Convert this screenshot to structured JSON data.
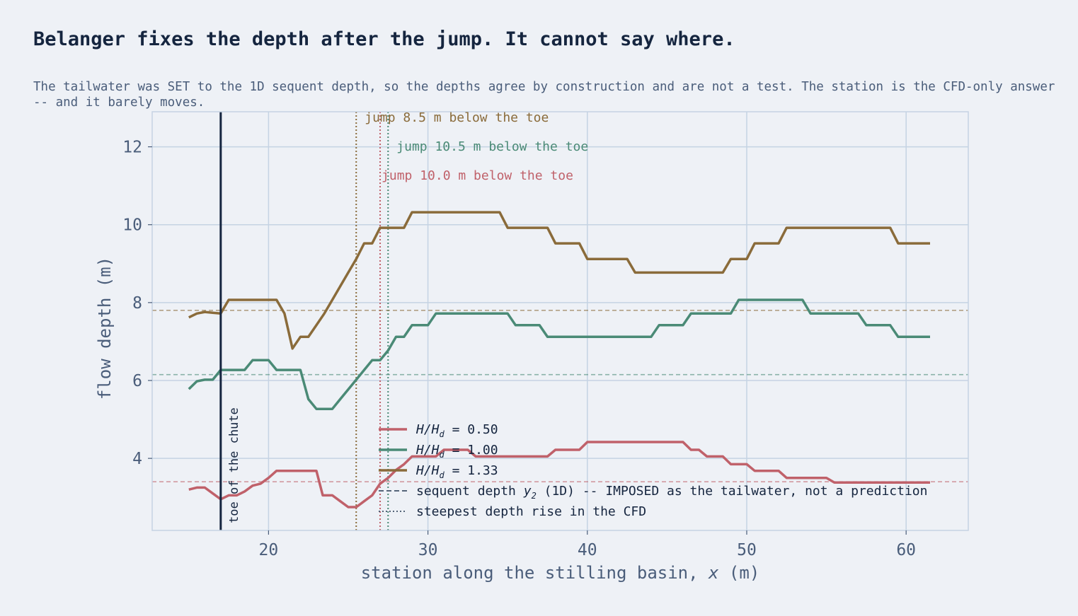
{
  "title": "Belanger fixes the depth after the jump. It cannot say where.",
  "subtitle": "The tailwater was SET to the 1D sequent depth, so the depths agree by construction and are not a test. The station is the CFD-only answer -- and it barely moves.",
  "colors": {
    "background": "#eef1f6",
    "grid": "#c5d3e3",
    "text": "#4a5d7a",
    "dark": "#15253f",
    "series_050": "#c0616a",
    "series_100": "#4a8a76",
    "series_133": "#8a6b3a"
  },
  "chart_data": {
    "type": "line",
    "xlabel": "station along the stilling basin,",
    "xlabel_var": "x",
    "xlabel_unit": "(m)",
    "ylabel": "flow depth  (m)",
    "xlim": [
      12.7,
      63.9
    ],
    "ylim": [
      2.15,
      12.9
    ],
    "xticks": [
      20,
      30,
      40,
      50,
      60
    ],
    "yticks": [
      4,
      6,
      8,
      10,
      12
    ],
    "grid": true,
    "legend_position": "lower-center",
    "toe": {
      "x": 17.0,
      "label": "toe of the chute"
    },
    "series": [
      {
        "name": "H/H_d = 0.50",
        "legend_pre": "H/H",
        "legend_sub": "d",
        "legend_post": " = 0.50",
        "color": "#c0616a",
        "sequent_depth": 3.4,
        "jump_x": 27.0,
        "jump_label": "jump 10.0 m below the toe",
        "points": [
          [
            15.0,
            3.2
          ],
          [
            15.5,
            3.25
          ],
          [
            16.0,
            3.25
          ],
          [
            16.5,
            3.1
          ],
          [
            17.0,
            2.95
          ],
          [
            17.5,
            3.05
          ],
          [
            18.0,
            3.05
          ],
          [
            18.5,
            3.15
          ],
          [
            19.0,
            3.3
          ],
          [
            19.5,
            3.35
          ],
          [
            20.0,
            3.5
          ],
          [
            20.5,
            3.68
          ],
          [
            21.0,
            3.68
          ],
          [
            22.0,
            3.68
          ],
          [
            22.5,
            3.68
          ],
          [
            23.0,
            3.68
          ],
          [
            23.4,
            3.05
          ],
          [
            24.0,
            3.05
          ],
          [
            24.5,
            2.9
          ],
          [
            25.0,
            2.75
          ],
          [
            25.5,
            2.75
          ],
          [
            26.0,
            2.9
          ],
          [
            26.5,
            3.05
          ],
          [
            27.0,
            3.35
          ],
          [
            27.5,
            3.5
          ],
          [
            28.0,
            3.7
          ],
          [
            28.5,
            3.85
          ],
          [
            29.0,
            4.05
          ],
          [
            30.0,
            4.05
          ],
          [
            30.5,
            4.05
          ],
          [
            31.0,
            4.22
          ],
          [
            32.0,
            4.22
          ],
          [
            32.5,
            4.22
          ],
          [
            33.0,
            4.05
          ],
          [
            34.0,
            4.05
          ],
          [
            35.0,
            4.05
          ],
          [
            36.0,
            4.05
          ],
          [
            37.0,
            4.05
          ],
          [
            37.5,
            4.05
          ],
          [
            38.0,
            4.22
          ],
          [
            39.0,
            4.22
          ],
          [
            39.5,
            4.22
          ],
          [
            40.0,
            4.42
          ],
          [
            41.0,
            4.42
          ],
          [
            42.0,
            4.42
          ],
          [
            43.0,
            4.42
          ],
          [
            44.0,
            4.42
          ],
          [
            45.0,
            4.42
          ],
          [
            46.0,
            4.42
          ],
          [
            46.5,
            4.22
          ],
          [
            47.0,
            4.22
          ],
          [
            47.5,
            4.05
          ],
          [
            48.0,
            4.05
          ],
          [
            48.5,
            4.05
          ],
          [
            49.0,
            3.85
          ],
          [
            50.0,
            3.85
          ],
          [
            50.5,
            3.68
          ],
          [
            51.0,
            3.68
          ],
          [
            52.0,
            3.68
          ],
          [
            52.5,
            3.5
          ],
          [
            53.0,
            3.5
          ],
          [
            54.0,
            3.5
          ],
          [
            55.0,
            3.5
          ],
          [
            55.5,
            3.38
          ],
          [
            56.0,
            3.38
          ],
          [
            57.0,
            3.38
          ],
          [
            58.0,
            3.38
          ],
          [
            59.0,
            3.38
          ],
          [
            60.0,
            3.38
          ],
          [
            61.5,
            3.38
          ]
        ]
      },
      {
        "name": "H/H_d = 1.00",
        "legend_pre": "H/H",
        "legend_sub": "d",
        "legend_post": " = 1.00",
        "color": "#4a8a76",
        "sequent_depth": 6.15,
        "jump_x": 27.5,
        "jump_label": "jump 10.5 m below the toe",
        "points": [
          [
            15.0,
            5.78
          ],
          [
            15.5,
            5.98
          ],
          [
            16.0,
            6.02
          ],
          [
            16.5,
            6.02
          ],
          [
            17.0,
            6.27
          ],
          [
            17.5,
            6.27
          ],
          [
            18.0,
            6.27
          ],
          [
            18.5,
            6.27
          ],
          [
            19.0,
            6.52
          ],
          [
            19.5,
            6.52
          ],
          [
            20.0,
            6.52
          ],
          [
            20.5,
            6.27
          ],
          [
            21.0,
            6.27
          ],
          [
            21.5,
            6.27
          ],
          [
            22.0,
            6.27
          ],
          [
            22.5,
            5.52
          ],
          [
            23.0,
            5.27
          ],
          [
            23.5,
            5.27
          ],
          [
            24.0,
            5.27
          ],
          [
            24.5,
            5.52
          ],
          [
            25.0,
            5.77
          ],
          [
            25.5,
            6.02
          ],
          [
            26.0,
            6.27
          ],
          [
            26.5,
            6.52
          ],
          [
            27.0,
            6.52
          ],
          [
            27.5,
            6.77
          ],
          [
            28.0,
            7.12
          ],
          [
            28.5,
            7.12
          ],
          [
            29.0,
            7.42
          ],
          [
            29.5,
            7.42
          ],
          [
            30.0,
            7.42
          ],
          [
            30.5,
            7.72
          ],
          [
            31.0,
            7.72
          ],
          [
            32.0,
            7.72
          ],
          [
            33.0,
            7.72
          ],
          [
            34.0,
            7.72
          ],
          [
            35.0,
            7.72
          ],
          [
            35.5,
            7.42
          ],
          [
            36.0,
            7.42
          ],
          [
            37.0,
            7.42
          ],
          [
            37.5,
            7.12
          ],
          [
            38.0,
            7.12
          ],
          [
            39.0,
            7.12
          ],
          [
            40.0,
            7.12
          ],
          [
            41.0,
            7.12
          ],
          [
            42.0,
            7.12
          ],
          [
            43.0,
            7.12
          ],
          [
            44.0,
            7.12
          ],
          [
            44.5,
            7.42
          ],
          [
            45.0,
            7.42
          ],
          [
            46.0,
            7.42
          ],
          [
            46.5,
            7.72
          ],
          [
            47.0,
            7.72
          ],
          [
            48.0,
            7.72
          ],
          [
            48.5,
            7.72
          ],
          [
            49.0,
            7.72
          ],
          [
            49.5,
            8.07
          ],
          [
            50.0,
            8.07
          ],
          [
            51.0,
            8.07
          ],
          [
            52.0,
            8.07
          ],
          [
            53.0,
            8.07
          ],
          [
            53.5,
            8.07
          ],
          [
            54.0,
            7.72
          ],
          [
            55.0,
            7.72
          ],
          [
            56.0,
            7.72
          ],
          [
            57.0,
            7.72
          ],
          [
            57.5,
            7.42
          ],
          [
            58.0,
            7.42
          ],
          [
            59.0,
            7.42
          ],
          [
            59.5,
            7.12
          ],
          [
            60.0,
            7.12
          ],
          [
            61.0,
            7.12
          ],
          [
            61.5,
            7.12
          ]
        ]
      },
      {
        "name": "H/H_d = 1.33",
        "legend_pre": "H/H",
        "legend_sub": "d",
        "legend_post": " = 1.33",
        "color": "#8a6b3a",
        "sequent_depth": 7.8,
        "jump_x": 25.5,
        "jump_label": "jump 8.5 m below the toe",
        "points": [
          [
            15.0,
            7.62
          ],
          [
            15.5,
            7.72
          ],
          [
            16.0,
            7.76
          ],
          [
            16.5,
            7.74
          ],
          [
            17.0,
            7.72
          ],
          [
            17.5,
            8.07
          ],
          [
            18.0,
            8.07
          ],
          [
            19.0,
            8.07
          ],
          [
            20.0,
            8.07
          ],
          [
            20.5,
            8.07
          ],
          [
            21.0,
            7.72
          ],
          [
            21.5,
            6.82
          ],
          [
            22.0,
            7.12
          ],
          [
            22.5,
            7.12
          ],
          [
            23.0,
            7.42
          ],
          [
            23.5,
            7.72
          ],
          [
            24.0,
            8.07
          ],
          [
            24.5,
            8.42
          ],
          [
            25.0,
            8.77
          ],
          [
            25.5,
            9.12
          ],
          [
            26.0,
            9.52
          ],
          [
            26.5,
            9.52
          ],
          [
            27.0,
            9.92
          ],
          [
            28.0,
            9.92
          ],
          [
            28.5,
            9.92
          ],
          [
            29.0,
            10.32
          ],
          [
            30.0,
            10.32
          ],
          [
            31.0,
            10.32
          ],
          [
            32.0,
            10.32
          ],
          [
            33.0,
            10.32
          ],
          [
            34.0,
            10.32
          ],
          [
            34.5,
            10.32
          ],
          [
            35.0,
            9.92
          ],
          [
            36.0,
            9.92
          ],
          [
            37.0,
            9.92
          ],
          [
            37.5,
            9.92
          ],
          [
            38.0,
            9.52
          ],
          [
            39.0,
            9.52
          ],
          [
            39.5,
            9.52
          ],
          [
            40.0,
            9.12
          ],
          [
            41.0,
            9.12
          ],
          [
            42.0,
            9.12
          ],
          [
            42.5,
            9.12
          ],
          [
            43.0,
            8.77
          ],
          [
            44.0,
            8.77
          ],
          [
            45.0,
            8.77
          ],
          [
            46.0,
            8.77
          ],
          [
            47.0,
            8.77
          ],
          [
            48.0,
            8.77
          ],
          [
            48.5,
            8.77
          ],
          [
            49.0,
            9.12
          ],
          [
            50.0,
            9.12
          ],
          [
            50.5,
            9.52
          ],
          [
            51.0,
            9.52
          ],
          [
            52.0,
            9.52
          ],
          [
            52.5,
            9.92
          ],
          [
            53.0,
            9.92
          ],
          [
            54.0,
            9.92
          ],
          [
            55.0,
            9.92
          ],
          [
            56.0,
            9.92
          ],
          [
            57.0,
            9.92
          ],
          [
            58.0,
            9.92
          ],
          [
            58.5,
            9.92
          ],
          [
            59.0,
            9.92
          ],
          [
            59.5,
            9.52
          ],
          [
            60.0,
            9.52
          ],
          [
            61.0,
            9.52
          ],
          [
            61.5,
            9.52
          ]
        ]
      }
    ],
    "legend_extra": [
      {
        "label_pre": "sequent depth ",
        "label_var": "y",
        "label_sub": "2",
        "label_post": " (1D) -- IMPOSED as the tailwater, not a prediction",
        "style": "dashed"
      },
      {
        "label_pre": "steepest depth rise in the CFD",
        "label_var": "",
        "label_sub": "",
        "label_post": "",
        "style": "dotted"
      }
    ]
  }
}
